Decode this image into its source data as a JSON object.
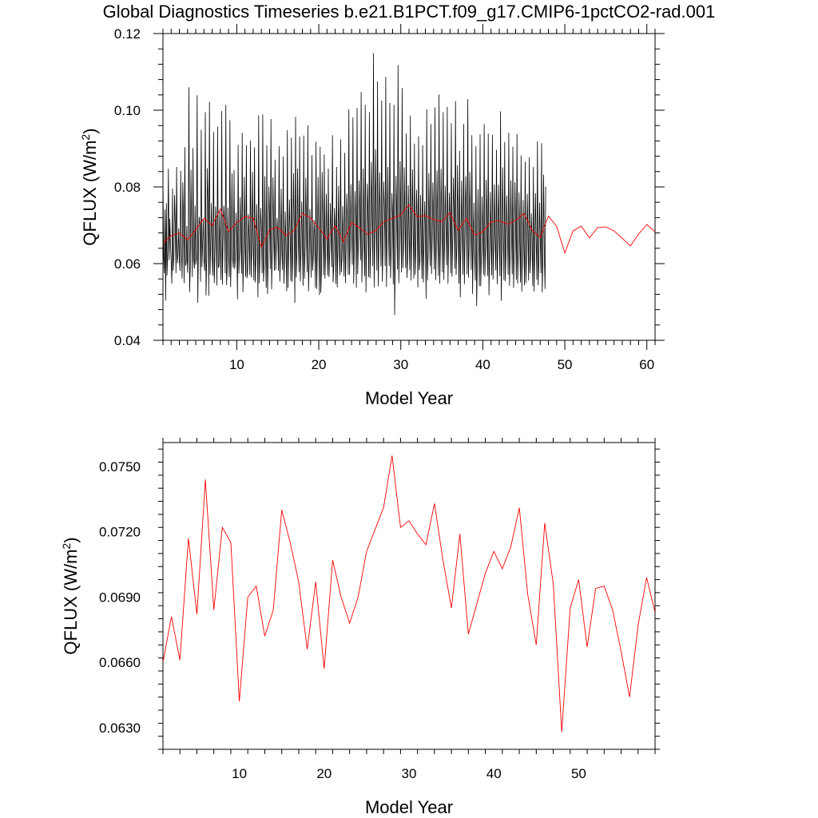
{
  "figure": {
    "title": "Global Diagnostics Timeseries b.e21.B1PCT.f09_g17.CMIP6-1pctCO2-rad.001"
  },
  "chart_data": [
    {
      "type": "line",
      "title": "Global Diagnostics Timeseries b.e21.B1PCT.f09_g17.CMIP6-1pctCO2-rad.001",
      "xlabel": "Model Year",
      "ylabel": "QFLUX (W/m²)",
      "ylabel_base": "QFLUX (W/m",
      "ylabel_sup": "2",
      "ylabel_close": ")",
      "xlim": [
        1,
        61
      ],
      "ylim": [
        0.04,
        0.12
      ],
      "xticks": [
        10,
        20,
        30,
        40,
        50,
        60
      ],
      "xtick_labels": [
        "10",
        "20",
        "30",
        "40",
        "50",
        "60"
      ],
      "yticks": [
        0.04,
        0.06,
        0.08,
        0.1,
        0.12
      ],
      "ytick_labels": [
        "0.04",
        "0.06",
        "0.08",
        "0.10",
        "0.12"
      ],
      "grid": false,
      "monthly": {
        "name": "monthly",
        "color": "#000000",
        "x_start": 1.0,
        "x_step": 0.0833333,
        "values": [
          0.0823,
          0.0625,
          0.0575,
          0.0741,
          0.0504,
          0.0758,
          0.0569,
          0.0638,
          0.0848,
          0.0609,
          0.0717,
          0.0654,
          0.0603,
          0.0548,
          0.0796,
          0.0581,
          0.0621,
          0.0779,
          0.0703,
          0.0575,
          0.0852,
          0.0601,
          0.0623,
          0.0692,
          0.0611,
          0.0581,
          0.0842,
          0.0632,
          0.0561,
          0.0812,
          0.0718,
          0.0549,
          0.0904,
          0.0594,
          0.0604,
          0.0698,
          0.0576,
          0.0622,
          0.106,
          0.0526,
          0.0593,
          0.0845,
          0.0689,
          0.0565,
          0.0901,
          0.0611,
          0.0587,
          0.0751,
          0.0597,
          0.0614,
          0.1039,
          0.0498,
          0.0658,
          0.0722,
          0.0702,
          0.0553,
          0.0949,
          0.0591,
          0.0648,
          0.0716,
          0.0612,
          0.0581,
          0.0995,
          0.0517,
          0.0618,
          0.0849,
          0.0752,
          0.0516,
          0.1022,
          0.0571,
          0.0655,
          0.0758,
          0.0621,
          0.0569,
          0.0944,
          0.0549,
          0.0617,
          0.0749,
          0.0688,
          0.0543,
          0.0957,
          0.0589,
          0.0594,
          0.0738,
          0.0634,
          0.0557,
          0.0998,
          0.0545,
          0.0662,
          0.0751,
          0.0717,
          0.0575,
          0.1014,
          0.0544,
          0.0584,
          0.0746,
          0.0623,
          0.0565,
          0.0974,
          0.0539,
          0.0634,
          0.0836,
          0.0612,
          0.0589,
          0.0844,
          0.0586,
          0.0615,
          0.0733,
          0.0667,
          0.0507,
          0.091,
          0.0574,
          0.0626,
          0.0773,
          0.0657,
          0.0574,
          0.0941,
          0.0525,
          0.0625,
          0.0826,
          0.0646,
          0.0566,
          0.0909,
          0.0562,
          0.0587,
          0.0729,
          0.0671,
          0.0571,
          0.0921,
          0.0564,
          0.0637,
          0.0839,
          0.0658,
          0.0556,
          0.0903,
          0.0551,
          0.0616,
          0.0755,
          0.0663,
          0.0512,
          0.0987,
          0.0549,
          0.0626,
          0.0745,
          0.0692,
          0.0575,
          0.0989,
          0.0553,
          0.0592,
          0.0828,
          0.0637,
          0.0537,
          0.0909,
          0.0521,
          0.0621,
          0.0801,
          0.0718,
          0.0586,
          0.0977,
          0.0533,
          0.0642,
          0.0825,
          0.0674,
          0.0581,
          0.0871,
          0.0584,
          0.0654,
          0.0719,
          0.0671,
          0.0581,
          0.0906,
          0.0553,
          0.0625,
          0.0795,
          0.0632,
          0.0583,
          0.0879,
          0.0548,
          0.0617,
          0.0736,
          0.0636,
          0.0528,
          0.0948,
          0.0537,
          0.0651,
          0.0767,
          0.068,
          0.0555,
          0.0929,
          0.0552,
          0.0628,
          0.0836,
          0.0703,
          0.0498,
          0.0983,
          0.0564,
          0.0629,
          0.0848,
          0.0679,
          0.0578,
          0.0932,
          0.0554,
          0.0636,
          0.0762,
          0.0659,
          0.0542,
          0.0934,
          0.0561,
          0.0643,
          0.0824,
          0.0684,
          0.0578,
          0.0961,
          0.0528,
          0.0609,
          0.0742,
          0.066,
          0.0563,
          0.0883,
          0.0582,
          0.0618,
          0.0713,
          0.0671,
          0.0537,
          0.0918,
          0.0534,
          0.065,
          0.0826,
          0.0647,
          0.0518,
          0.0905,
          0.0524,
          0.0586,
          0.0839,
          0.0695,
          0.057,
          0.0885,
          0.0561,
          0.0631,
          0.0782,
          0.0653,
          0.0569,
          0.0848,
          0.0565,
          0.0634,
          0.0758,
          0.067,
          0.0591,
          0.0935,
          0.0551,
          0.0597,
          0.0745,
          0.0693,
          0.0547,
          0.0852,
          0.0538,
          0.065,
          0.0803,
          0.0635,
          0.057,
          0.0924,
          0.0577,
          0.0616,
          0.075,
          0.0658,
          0.0567,
          0.0889,
          0.0549,
          0.0636,
          0.0782,
          0.0708,
          0.0571,
          0.1002,
          0.0571,
          0.0647,
          0.0807,
          0.0688,
          0.0597,
          0.0981,
          0.0548,
          0.0641,
          0.0789,
          0.0715,
          0.0537,
          0.1006,
          0.0573,
          0.0661,
          0.0817,
          0.0719,
          0.0609,
          0.1047,
          0.0551,
          0.0648,
          0.0848,
          0.0667,
          0.0567,
          0.1014,
          0.0525,
          0.0659,
          0.0809,
          0.0729,
          0.0565,
          0.0995,
          0.0562,
          0.0648,
          0.0865,
          0.0749,
          0.0593,
          0.1149,
          0.0538,
          0.0662,
          0.0898,
          0.0711,
          0.0582,
          0.1075,
          0.0541,
          0.0665,
          0.0838,
          0.0702,
          0.0593,
          0.1025,
          0.0553,
          0.0647,
          0.0814,
          0.0746,
          0.0594,
          0.1087,
          0.0539,
          0.0668,
          0.0852,
          0.0688,
          0.0594,
          0.1019,
          0.0562,
          0.0642,
          0.0784,
          0.0721,
          0.0546,
          0.1014,
          0.0466,
          0.0641,
          0.0829,
          0.0731,
          0.0585,
          0.1118,
          0.0549,
          0.0651,
          0.0867,
          0.0718,
          0.0577,
          0.1058,
          0.0588,
          0.0653,
          0.0851,
          0.0712,
          0.0589,
          0.0939,
          0.0563,
          0.0617,
          0.0804,
          0.0676,
          0.0583,
          0.0986,
          0.0556,
          0.0673,
          0.0846,
          0.0699,
          0.0561,
          0.0913,
          0.0571,
          0.0645,
          0.0793,
          0.0718,
          0.0538,
          0.0932,
          0.0583,
          0.0612,
          0.0779,
          0.0654,
          0.056,
          0.0909,
          0.0551,
          0.0655,
          0.0763,
          0.0688,
          0.0509,
          0.1002,
          0.0556,
          0.0628,
          0.0836,
          0.0695,
          0.0593,
          0.0964,
          0.0573,
          0.0674,
          0.0812,
          0.0702,
          0.0585,
          0.1007,
          0.0557,
          0.0647,
          0.0843,
          0.0694,
          0.0568,
          0.1041,
          0.0548,
          0.0662,
          0.0847,
          0.0699,
          0.0577,
          0.0995,
          0.0558,
          0.0655,
          0.0803,
          0.0705,
          0.0596,
          0.1009,
          0.0548,
          0.0661,
          0.0785,
          0.0721,
          0.0575,
          0.0966,
          0.0566,
          0.0673,
          0.0824,
          0.0734,
          0.0587,
          0.1024,
          0.0571,
          0.0645,
          0.0856,
          0.0696,
          0.0548,
          0.0894,
          0.0512,
          0.0657,
          0.0816,
          0.0685,
          0.0571,
          0.0964,
          0.0546,
          0.0664,
          0.0828,
          0.0738,
          0.0572,
          0.1029,
          0.0563,
          0.0641,
          0.0839,
          0.0705,
          0.0584,
          0.0935,
          0.0521,
          0.0647,
          0.0759,
          0.0627,
          0.0556,
          0.0906,
          0.0489,
          0.0611,
          0.0794,
          0.0658,
          0.0541,
          0.0937,
          0.0541,
          0.0621,
          0.0775,
          0.0664,
          0.0571,
          0.0964,
          0.0566,
          0.0641,
          0.0819,
          0.0687,
          0.0568,
          0.0939,
          0.0518,
          0.0633,
          0.0787,
          0.0661,
          0.0569,
          0.0936,
          0.0559,
          0.0658,
          0.0806,
          0.0663,
          0.0582,
          0.0897,
          0.0546,
          0.0646,
          0.0806,
          0.0683,
          0.0567,
          0.0997,
          0.0503,
          0.0644,
          0.0851,
          0.0671,
          0.0557,
          0.0917,
          0.0554,
          0.0645,
          0.0778,
          0.0681,
          0.0571,
          0.0941,
          0.0542,
          0.0623,
          0.0817,
          0.0684,
          0.0572,
          0.0905,
          0.0537,
          0.0638,
          0.0812,
          0.0691,
          0.0558,
          0.0938,
          0.0548,
          0.0637,
          0.0786,
          0.0659,
          0.0551,
          0.0882,
          0.0527,
          0.0625,
          0.0766,
          0.0649,
          0.0543,
          0.0866,
          0.0549,
          0.0627,
          0.0782,
          0.0678,
          0.0556,
          0.0877,
          0.0575,
          0.0621,
          0.0731,
          0.0666,
          0.0541,
          0.0852,
          0.0527,
          0.0642,
          0.0784,
          0.0669,
          0.0558,
          0.0919,
          0.0544,
          0.0609,
          0.0759,
          0.0668,
          0.0575,
          0.0914,
          0.0525,
          0.0623,
          0.0832,
          0.0628,
          0.0534,
          0.0801
        ]
      },
      "annual": {
        "name": "annual",
        "color": "#ff0000",
        "x": [
          1.0,
          2.0,
          3.0,
          4.0,
          5.0,
          6.0,
          7.0,
          8.0,
          9.0,
          10.0,
          11.0,
          12.0,
          13.0,
          14.0,
          15.0,
          16.0,
          17.0,
          18.0,
          19.0,
          20.0,
          21.0,
          22.0,
          23.0,
          24.0,
          25.0,
          26.0,
          27.0,
          28.0,
          29.0,
          30.0,
          31.0,
          32.0,
          33.0,
          34.0,
          35.0,
          36.0,
          37.0,
          38.0,
          39.0,
          40.0,
          41.0,
          42.0,
          43.0,
          44.0,
          45.0,
          46.0,
          47.0,
          48.0,
          49.0,
          50.0,
          51.0,
          52.0,
          53.0,
          54.0,
          55.0,
          56.0,
          57.0,
          58.0,
          59.0,
          60.0,
          61.0
        ],
        "values": [
          0.0653,
          0.0673,
          0.068,
          0.0662,
          0.0689,
          0.0718,
          0.0699,
          0.0743,
          0.0684,
          0.0707,
          0.0722,
          0.0719,
          0.0643,
          0.0688,
          0.0695,
          0.0673,
          0.0687,
          0.0731,
          0.0719,
          0.0693,
          0.0664,
          0.0699,
          0.0657,
          0.0707,
          0.0693,
          0.0676,
          0.0687,
          0.071,
          0.0718,
          0.0727,
          0.0753,
          0.0722,
          0.0725,
          0.0715,
          0.0709,
          0.0733,
          0.0686,
          0.0718,
          0.0674,
          0.0683,
          0.0709,
          0.0712,
          0.0703,
          0.0713,
          0.0731,
          0.0688,
          0.0668,
          0.0724,
          0.0697,
          0.0628,
          0.0685,
          0.0698,
          0.0667,
          0.0694,
          0.0696,
          0.0685,
          0.0666,
          0.0646,
          0.0677,
          0.0702,
          0.0683
        ]
      }
    },
    {
      "type": "line",
      "xlabel": "Model Year",
      "ylabel": "QFLUX (W/m²)",
      "ylabel_base": "QFLUX (W/m",
      "ylabel_sup": "2",
      "ylabel_close": ")",
      "xlim": [
        1,
        59
      ],
      "ylim": [
        0.062,
        0.0761
      ],
      "xticks": [
        10,
        20,
        30,
        40,
        50
      ],
      "xtick_labels": [
        "10",
        "20",
        "30",
        "40",
        "50"
      ],
      "yticks": [
        0.063,
        0.066,
        0.069,
        0.072,
        0.075
      ],
      "ytick_labels": [
        "0.0630",
        "0.0660",
        "0.0690",
        "0.0720",
        "0.0750"
      ],
      "grid": false,
      "annual": {
        "name": "annual",
        "color": "#ff0000",
        "x": [
          1.0,
          2.0,
          3.0,
          4.0,
          5.0,
          6.0,
          7.0,
          8.0,
          9.0,
          10.0,
          11.0,
          12.0,
          13.0,
          14.0,
          15.0,
          16.0,
          17.0,
          18.0,
          19.0,
          20.0,
          21.0,
          22.0,
          23.0,
          24.0,
          25.0,
          26.0,
          27.0,
          28.0,
          29.0,
          30.0,
          31.0,
          32.0,
          33.0,
          34.0,
          35.0,
          36.0,
          37.0,
          38.0,
          39.0,
          40.0,
          41.0,
          42.0,
          43.0,
          44.0,
          45.0,
          46.0,
          47.0,
          48.0,
          49.0,
          50.0,
          51.0,
          52.0,
          53.0,
          54.0,
          55.0,
          56.0,
          57.0,
          58.0,
          59.0
        ],
        "values": [
          0.066,
          0.0681,
          0.0661,
          0.0717,
          0.0682,
          0.0744,
          0.0684,
          0.0722,
          0.0715,
          0.0642,
          0.069,
          0.0695,
          0.0672,
          0.0684,
          0.073,
          0.0715,
          0.0697,
          0.0666,
          0.0697,
          0.0657,
          0.0707,
          0.069,
          0.0678,
          0.069,
          0.0711,
          0.0721,
          0.0731,
          0.0755,
          0.0722,
          0.0725,
          0.0719,
          0.0714,
          0.0733,
          0.0707,
          0.0685,
          0.0719,
          0.0673,
          0.0687,
          0.0701,
          0.0711,
          0.0703,
          0.0713,
          0.0731,
          0.0691,
          0.0668,
          0.0724,
          0.0696,
          0.0628,
          0.0685,
          0.0698,
          0.0667,
          0.0694,
          0.0695,
          0.0684,
          0.0665,
          0.0644,
          0.0677,
          0.0699,
          0.0683
        ]
      }
    }
  ]
}
